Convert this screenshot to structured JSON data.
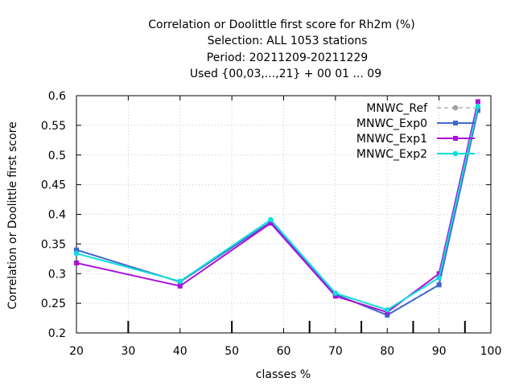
{
  "chart_data": {
    "type": "line",
    "title_lines": [
      "Correlation or Doolittle first score  for Rh2m (%)",
      "Selection: ALL    1053 stations",
      "Period: 20211209-20211229",
      "Used {00,03,...,21} + 00 01 ... 09"
    ],
    "xlabel": "classes %",
    "ylabel": "Correlation or Doolittle first score",
    "xlim": [
      20,
      100
    ],
    "ylim": [
      0.2,
      0.6
    ],
    "x_ticks": [
      "20",
      "30",
      "40",
      "50",
      "60",
      "70",
      "80",
      "90",
      "100"
    ],
    "y_ticks": [
      "0.2",
      "0.25",
      "0.3",
      "0.35",
      "0.4",
      "0.45",
      "0.5",
      "0.55",
      "0.6"
    ],
    "x_tick_values": [
      20,
      30,
      40,
      50,
      60,
      70,
      80,
      90,
      100
    ],
    "y_tick_values": [
      0.2,
      0.25,
      0.3,
      0.35,
      0.4,
      0.45,
      0.5,
      0.55,
      0.6
    ],
    "class_marks": [
      30,
      50,
      65,
      75,
      85,
      95
    ],
    "grid": true,
    "legend_position": "top-right",
    "x": [
      20,
      40,
      57.5,
      70,
      80,
      90,
      97.5
    ],
    "series": [
      {
        "name": "MNWC_Ref",
        "color": "#a0a0a0",
        "dashed": true,
        "marker": "circle",
        "values": [
          0.34,
          0.287,
          0.387,
          0.265,
          0.231,
          0.282,
          0.578
        ]
      },
      {
        "name": "MNWC_Exp0",
        "color": "#4169cc",
        "dashed": false,
        "marker": "square",
        "values": [
          0.34,
          0.286,
          0.387,
          0.265,
          0.23,
          0.281,
          0.575
        ]
      },
      {
        "name": "MNWC_Exp1",
        "color": "#aa11dd",
        "dashed": false,
        "marker": "square",
        "values": [
          0.318,
          0.279,
          0.385,
          0.262,
          0.235,
          0.3,
          0.59
        ]
      },
      {
        "name": "MNWC_Exp2",
        "color": "#11dddd",
        "dashed": false,
        "marker": "circle",
        "values": [
          0.334,
          0.287,
          0.391,
          0.267,
          0.239,
          0.293,
          0.582
        ]
      }
    ]
  }
}
